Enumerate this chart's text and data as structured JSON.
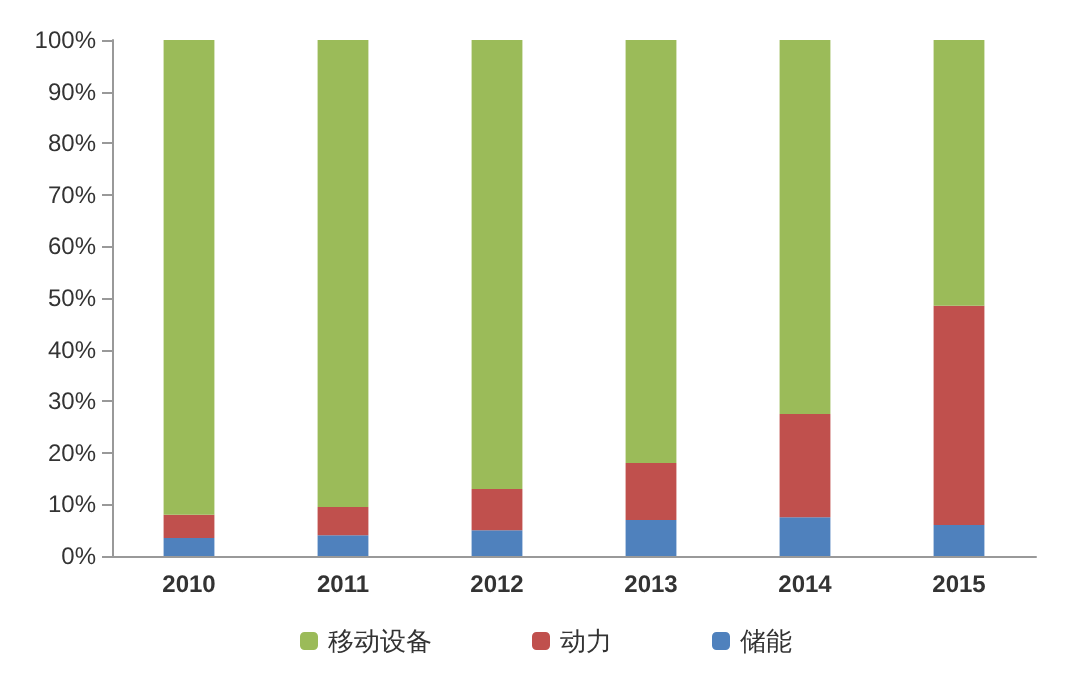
{
  "chart_data": {
    "type": "bar",
    "stacked": true,
    "categories": [
      "2010",
      "2011",
      "2012",
      "2013",
      "2014",
      "2015"
    ],
    "series": [
      {
        "name": "储能",
        "color": "#4f81bd",
        "values": [
          3.5,
          4,
          5,
          7,
          7.5,
          6
        ]
      },
      {
        "name": "动力",
        "color": "#c0504d",
        "values": [
          4.5,
          5.5,
          8,
          11,
          20,
          42.5
        ]
      },
      {
        "name": "移动设备",
        "color": "#9bbb59",
        "values": [
          92,
          90.5,
          87,
          82,
          72.5,
          51.5
        ]
      }
    ],
    "ylim": [
      0,
      100
    ],
    "yticks": [
      {
        "value": 0,
        "label": "0%"
      },
      {
        "value": 10,
        "label": "10%"
      },
      {
        "value": 20,
        "label": "20%"
      },
      {
        "value": 30,
        "label": "30%"
      },
      {
        "value": 40,
        "label": "40%"
      },
      {
        "value": 50,
        "label": "50%"
      },
      {
        "value": 60,
        "label": "60%"
      },
      {
        "value": 70,
        "label": "70%"
      },
      {
        "value": 80,
        "label": "80%"
      },
      {
        "value": 90,
        "label": "90%"
      },
      {
        "value": 100,
        "label": "100%"
      }
    ],
    "grid": false,
    "legend": "bottom"
  }
}
